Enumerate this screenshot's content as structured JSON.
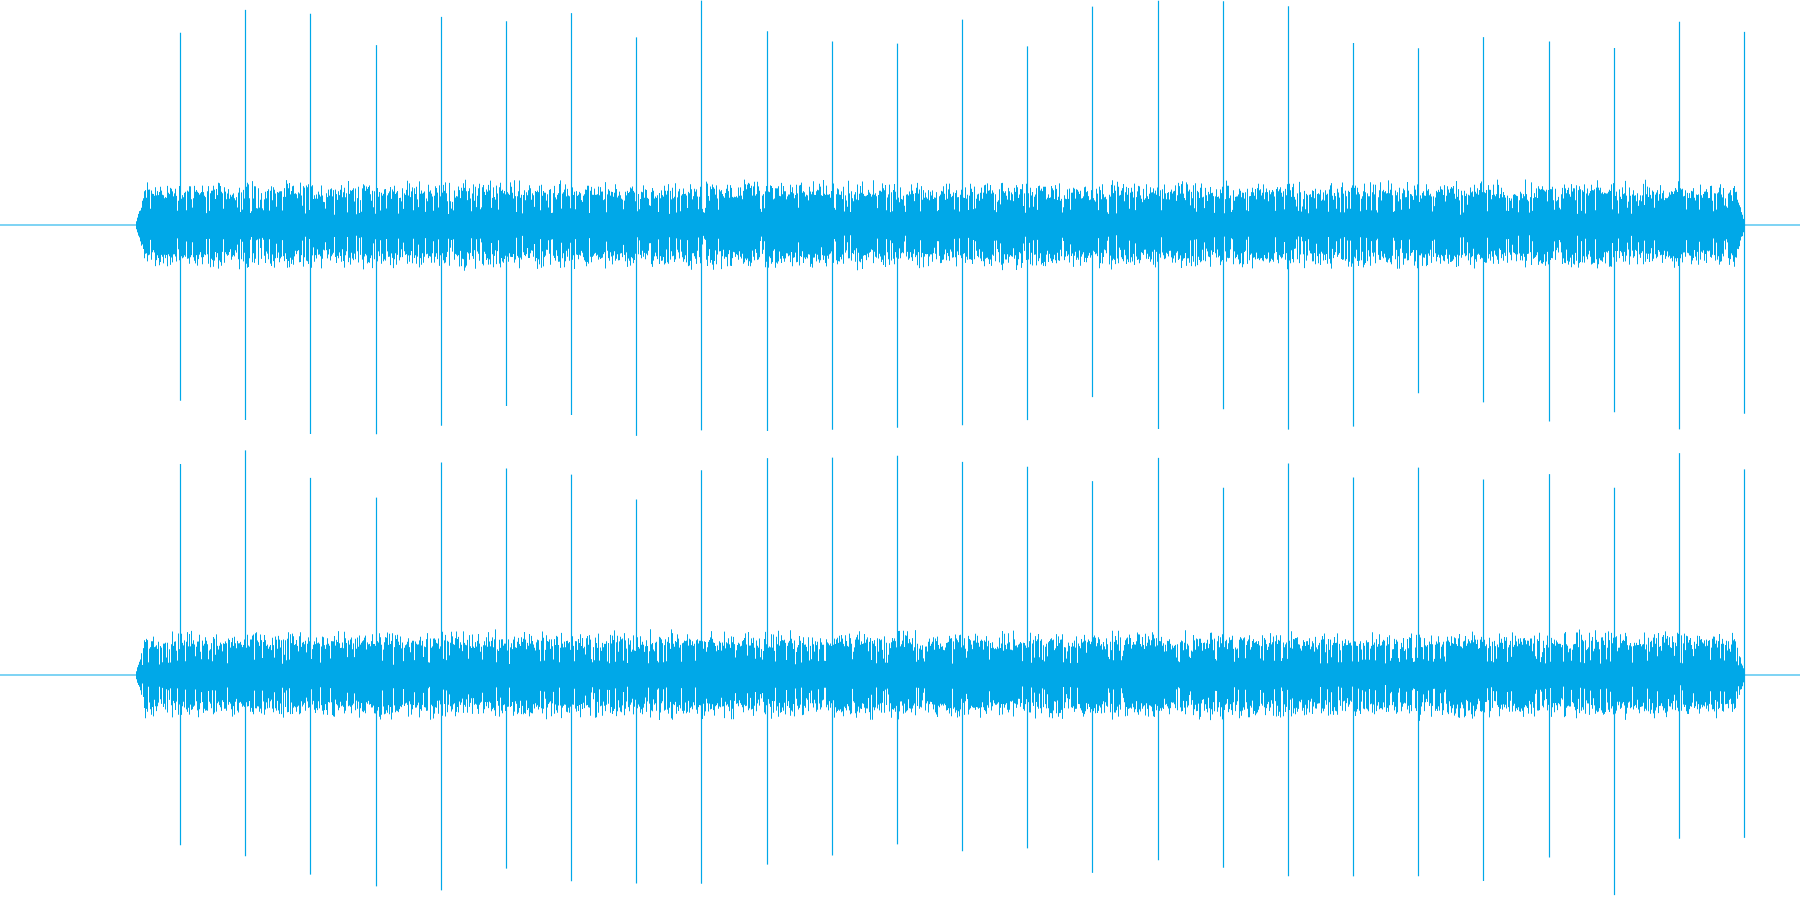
{
  "waveform": {
    "color": "#00a8e8",
    "channels": [
      {
        "id": "channel-1"
      },
      {
        "id": "channel-2"
      }
    ],
    "spike_count": 25
  }
}
